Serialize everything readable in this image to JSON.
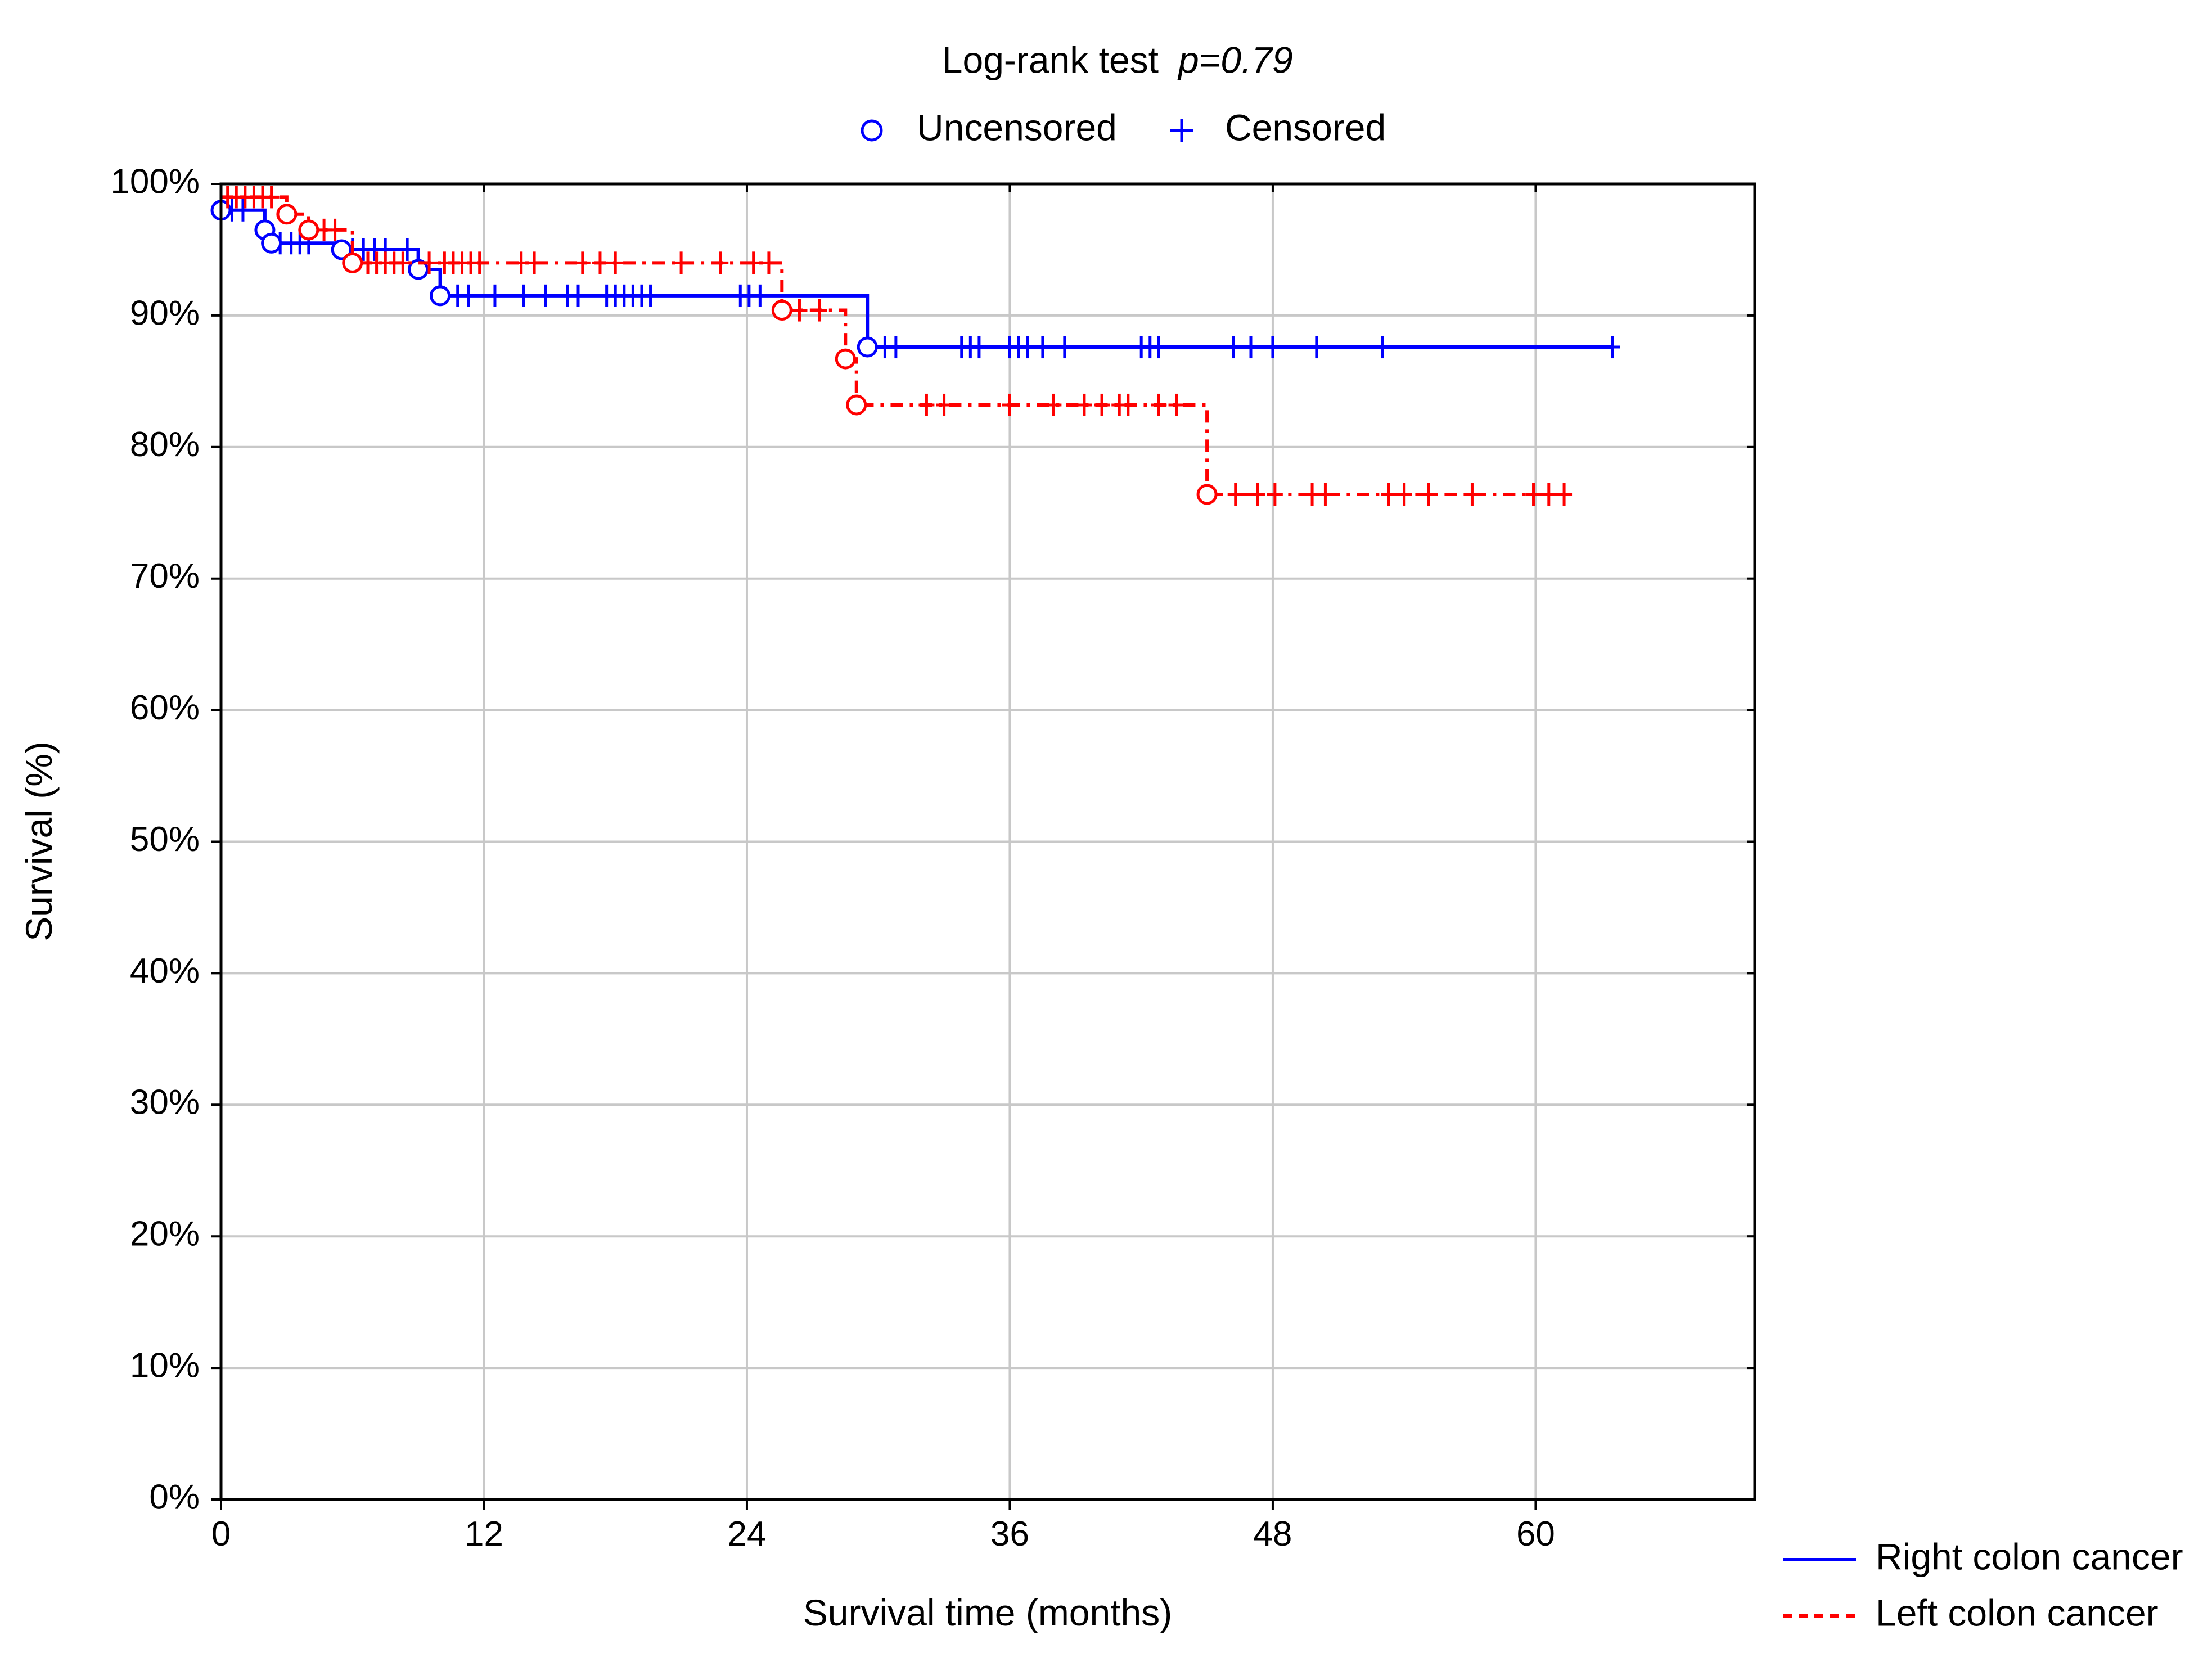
{
  "chart_data": {
    "type": "line",
    "title": "Log-rank test",
    "annotation": "p=0.79",
    "xlabel": "Survival time (months)",
    "ylabel": "Survival (%)",
    "xlim": [
      0,
      70
    ],
    "ylim": [
      0,
      100
    ],
    "x_ticks": [
      0,
      12,
      24,
      36,
      48,
      60
    ],
    "x_tick_labels": [
      "0",
      "12",
      "24",
      "36",
      "48",
      "60"
    ],
    "y_ticks": [
      0,
      10,
      20,
      30,
      40,
      50,
      60,
      70,
      80,
      90,
      100
    ],
    "y_tick_labels": [
      "0%",
      "10%",
      "20%",
      "30%",
      "40%",
      "50%",
      "60%",
      "70%",
      "80%",
      "90%",
      "100%"
    ],
    "grid": true,
    "marker_legend": {
      "position": "top-center",
      "items": [
        {
          "symbol": "circle",
          "label": "Uncensored"
        },
        {
          "symbol": "plus",
          "label": "Censored"
        }
      ]
    },
    "legend": {
      "position": "bottom-right"
    },
    "series": [
      {
        "name": "Right colon cancer",
        "color": "#0000ff",
        "style": "solid",
        "step_x": [
          0,
          2,
          2.3,
          5.5,
          9,
          10,
          29.5,
          63.5
        ],
        "step_y": [
          98,
          96.5,
          95.5,
          95,
          93.5,
          91.5,
          87.6,
          87.6
        ],
        "uncensored": [
          {
            "x": 0,
            "y": 98
          },
          {
            "x": 2,
            "y": 96.5
          },
          {
            "x": 2.3,
            "y": 95.5
          },
          {
            "x": 5.5,
            "y": 95
          },
          {
            "x": 9,
            "y": 93.5
          },
          {
            "x": 10,
            "y": 91.5
          },
          {
            "x": 29.5,
            "y": 87.6
          }
        ],
        "censored": [
          {
            "x": 0.5,
            "y": 98
          },
          {
            "x": 1,
            "y": 98
          },
          {
            "x": 2.7,
            "y": 95.5
          },
          {
            "x": 3.2,
            "y": 95.5
          },
          {
            "x": 3.6,
            "y": 95.5
          },
          {
            "x": 4,
            "y": 95.5
          },
          {
            "x": 6,
            "y": 95
          },
          {
            "x": 6.5,
            "y": 95
          },
          {
            "x": 7,
            "y": 95
          },
          {
            "x": 7.5,
            "y": 95
          },
          {
            "x": 8.5,
            "y": 95
          },
          {
            "x": 10.8,
            "y": 91.5
          },
          {
            "x": 11.3,
            "y": 91.5
          },
          {
            "x": 12.5,
            "y": 91.5
          },
          {
            "x": 13.8,
            "y": 91.5
          },
          {
            "x": 14.8,
            "y": 91.5
          },
          {
            "x": 15.8,
            "y": 91.5
          },
          {
            "x": 16.3,
            "y": 91.5
          },
          {
            "x": 17.6,
            "y": 91.5
          },
          {
            "x": 18,
            "y": 91.5
          },
          {
            "x": 18.4,
            "y": 91.5
          },
          {
            "x": 18.8,
            "y": 91.5
          },
          {
            "x": 19.2,
            "y": 91.5
          },
          {
            "x": 19.6,
            "y": 91.5
          },
          {
            "x": 23.7,
            "y": 91.5
          },
          {
            "x": 24.1,
            "y": 91.5
          },
          {
            "x": 24.6,
            "y": 91.5
          },
          {
            "x": 30.3,
            "y": 87.6
          },
          {
            "x": 30.8,
            "y": 87.6
          },
          {
            "x": 33.8,
            "y": 87.6
          },
          {
            "x": 34.2,
            "y": 87.6
          },
          {
            "x": 34.6,
            "y": 87.6
          },
          {
            "x": 36,
            "y": 87.6
          },
          {
            "x": 36.4,
            "y": 87.6
          },
          {
            "x": 36.8,
            "y": 87.6
          },
          {
            "x": 37.5,
            "y": 87.6
          },
          {
            "x": 38.5,
            "y": 87.6
          },
          {
            "x": 42,
            "y": 87.6
          },
          {
            "x": 42.4,
            "y": 87.6
          },
          {
            "x": 42.8,
            "y": 87.6
          },
          {
            "x": 46.2,
            "y": 87.6
          },
          {
            "x": 47,
            "y": 87.6
          },
          {
            "x": 48,
            "y": 87.6
          },
          {
            "x": 50,
            "y": 87.6
          },
          {
            "x": 53,
            "y": 87.6
          },
          {
            "x": 63.5,
            "y": 87.6
          }
        ]
      },
      {
        "name": "Left colon cancer",
        "color": "#ff0000",
        "style": "dashed",
        "step_x": [
          0,
          3,
          4,
          6,
          25.6,
          28.5,
          29,
          45,
          61.5
        ],
        "step_y": [
          99,
          97.7,
          96.5,
          94,
          90.4,
          86.7,
          83.2,
          76.4,
          76.4
        ],
        "uncensored": [
          {
            "x": 3,
            "y": 97.7
          },
          {
            "x": 4,
            "y": 96.5
          },
          {
            "x": 6,
            "y": 94
          },
          {
            "x": 25.6,
            "y": 90.4
          },
          {
            "x": 28.5,
            "y": 86.7
          },
          {
            "x": 29,
            "y": 83.2
          },
          {
            "x": 45,
            "y": 76.4
          }
        ],
        "censored": [
          {
            "x": 0.3,
            "y": 99
          },
          {
            "x": 0.7,
            "y": 99
          },
          {
            "x": 1.1,
            "y": 99
          },
          {
            "x": 1.5,
            "y": 99
          },
          {
            "x": 1.9,
            "y": 99
          },
          {
            "x": 2.3,
            "y": 99
          },
          {
            "x": 4.7,
            "y": 96.5
          },
          {
            "x": 5.2,
            "y": 96.5
          },
          {
            "x": 6.7,
            "y": 94
          },
          {
            "x": 7.1,
            "y": 94
          },
          {
            "x": 7.5,
            "y": 94
          },
          {
            "x": 7.9,
            "y": 94
          },
          {
            "x": 8.3,
            "y": 94
          },
          {
            "x": 9.5,
            "y": 94
          },
          {
            "x": 10.2,
            "y": 94
          },
          {
            "x": 10.6,
            "y": 94
          },
          {
            "x": 11,
            "y": 94
          },
          {
            "x": 11.4,
            "y": 94
          },
          {
            "x": 11.8,
            "y": 94
          },
          {
            "x": 13.7,
            "y": 94
          },
          {
            "x": 14.3,
            "y": 94
          },
          {
            "x": 16.5,
            "y": 94
          },
          {
            "x": 17.3,
            "y": 94
          },
          {
            "x": 18,
            "y": 94
          },
          {
            "x": 21,
            "y": 94
          },
          {
            "x": 22.8,
            "y": 94
          },
          {
            "x": 24.3,
            "y": 94
          },
          {
            "x": 25,
            "y": 94
          },
          {
            "x": 26.4,
            "y": 90.4
          },
          {
            "x": 27.3,
            "y": 90.4
          },
          {
            "x": 32.2,
            "y": 83.2
          },
          {
            "x": 33,
            "y": 83.2
          },
          {
            "x": 36,
            "y": 83.2
          },
          {
            "x": 38,
            "y": 83.2
          },
          {
            "x": 39.4,
            "y": 83.2
          },
          {
            "x": 40.2,
            "y": 83.2
          },
          {
            "x": 41,
            "y": 83.2
          },
          {
            "x": 41.4,
            "y": 83.2
          },
          {
            "x": 42.8,
            "y": 83.2
          },
          {
            "x": 43.6,
            "y": 83.2
          },
          {
            "x": 46.3,
            "y": 76.4
          },
          {
            "x": 47.3,
            "y": 76.4
          },
          {
            "x": 48.1,
            "y": 76.4
          },
          {
            "x": 49.8,
            "y": 76.4
          },
          {
            "x": 50.4,
            "y": 76.4
          },
          {
            "x": 53.3,
            "y": 76.4
          },
          {
            "x": 54,
            "y": 76.4
          },
          {
            "x": 55.1,
            "y": 76.4
          },
          {
            "x": 57.1,
            "y": 76.4
          },
          {
            "x": 59.9,
            "y": 76.4
          },
          {
            "x": 60.6,
            "y": 76.4
          },
          {
            "x": 61.3,
            "y": 76.4
          }
        ]
      }
    ]
  }
}
